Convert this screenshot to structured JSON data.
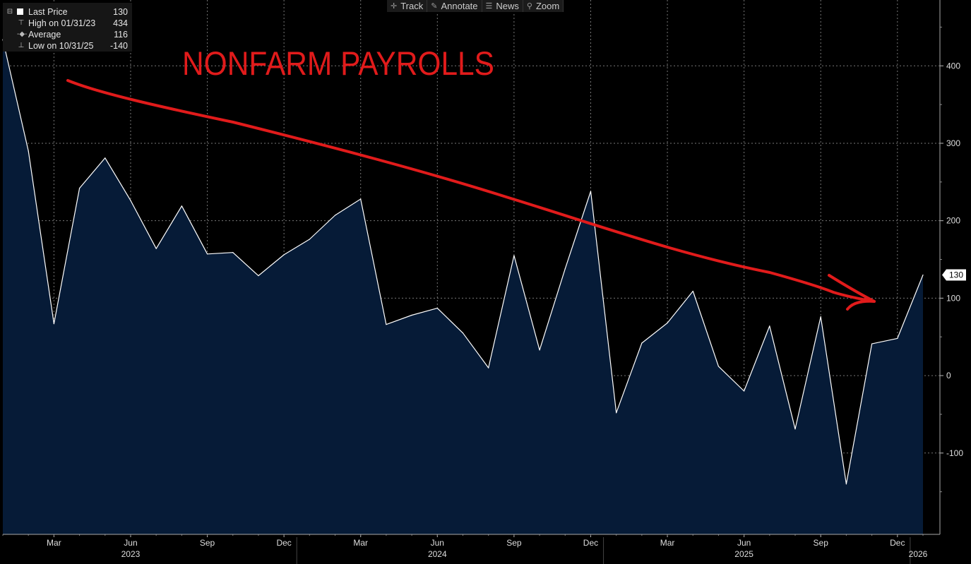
{
  "toolbar": {
    "items": [
      {
        "label": "Track",
        "icon": "crosshair-icon",
        "glyph": "✛"
      },
      {
        "label": "Annotate",
        "icon": "pencil-icon",
        "glyph": "✎"
      },
      {
        "label": "News",
        "icon": "news-icon",
        "glyph": "☰"
      },
      {
        "label": "Zoom",
        "icon": "zoom-icon",
        "glyph": "⚲"
      }
    ]
  },
  "legend": {
    "last_label": "Last Price",
    "last_value": "130",
    "high_label": "High on 01/31/23",
    "high_value": "434",
    "avg_label": "Average",
    "avg_value": "116",
    "low_label": "Low on 10/31/25",
    "low_value": "-140"
  },
  "annotation": {
    "text": "NONFARM PAYROLLS",
    "color": "#e11b1b"
  },
  "colors": {
    "line": "#ffffff",
    "fill": "#061b37",
    "grid": "#777777",
    "axis_text": "#dddddd"
  },
  "chart_data": {
    "type": "area",
    "series": [
      {
        "x": [
          "2023-01",
          "2023-02",
          "2023-03",
          "2023-04",
          "2023-05",
          "2023-06",
          "2023-07",
          "2023-08",
          "2023-09",
          "2023-10",
          "2023-11",
          "2023-12",
          "2024-01",
          "2024-02",
          "2024-03",
          "2024-04",
          "2024-05",
          "2024-06",
          "2024-07",
          "2024-08",
          "2024-09",
          "2024-10",
          "2024-11",
          "2024-12",
          "2025-01",
          "2025-02",
          "2025-03",
          "2025-04",
          "2025-05",
          "2025-06",
          "2025-07",
          "2025-08",
          "2025-09",
          "2025-10",
          "2025-11",
          "2025-12",
          "2026-01"
        ],
        "values": [
          434,
          290,
          67,
          242,
          281,
          226,
          164,
          219,
          157,
          159,
          129,
          156,
          176,
          207,
          228,
          66,
          78,
          87,
          55,
          10,
          155,
          33,
          138,
          238,
          -48,
          42,
          68,
          109,
          12,
          -20,
          64,
          -69,
          76,
          -140,
          41,
          48,
          130
        ]
      }
    ],
    "ylim": [
      -205,
      485
    ],
    "yticks": [
      -100,
      0,
      100,
      200,
      300,
      400
    ],
    "x_tick_labels": [
      {
        "month": "2023-03",
        "label": "Mar"
      },
      {
        "month": "2023-06",
        "label": "Jun"
      },
      {
        "month": "2023-09",
        "label": "Sep"
      },
      {
        "month": "2023-12",
        "label": "Dec"
      },
      {
        "month": "2024-03",
        "label": "Mar"
      },
      {
        "month": "2024-06",
        "label": "Jun"
      },
      {
        "month": "2024-09",
        "label": "Sep"
      },
      {
        "month": "2024-12",
        "label": "Dec"
      },
      {
        "month": "2025-03",
        "label": "Mar"
      },
      {
        "month": "2025-06",
        "label": "Jun"
      },
      {
        "month": "2025-09",
        "label": "Sep"
      },
      {
        "month": "2025-12",
        "label": "Dec"
      }
    ],
    "year_labels": [
      {
        "month": "2023-06",
        "label": "2023"
      },
      {
        "month": "2024-06",
        "label": "2024"
      },
      {
        "month": "2025-06",
        "label": "2025"
      },
      {
        "month": "2026-01",
        "label": "2026"
      }
    ],
    "last_value_label": "130",
    "grid": true,
    "legend_position": "top-left"
  }
}
